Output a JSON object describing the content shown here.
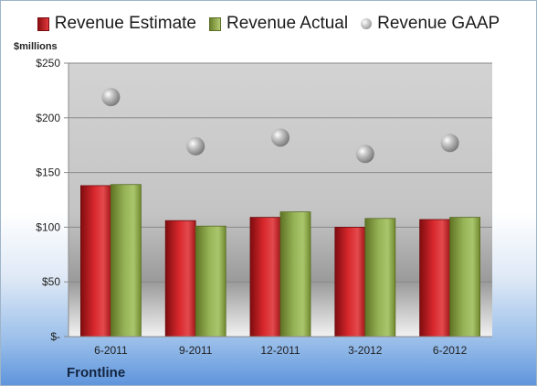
{
  "chart_data": {
    "type": "bar",
    "unit_label": "$millions",
    "categories": [
      "6-2011",
      "9-2011",
      "12-2011",
      "3-2012",
      "6-2012"
    ],
    "series": [
      {
        "name": "Revenue Estimate",
        "kind": "bar",
        "color": "#c8262a",
        "values": [
          138,
          106,
          109,
          100,
          107
        ]
      },
      {
        "name": "Revenue Actual",
        "kind": "bar",
        "color": "#8aa548",
        "values": [
          139,
          101,
          114,
          108,
          109
        ]
      },
      {
        "name": "Revenue GAAP",
        "kind": "marker",
        "color": "#a8a8a8",
        "values": [
          219,
          174,
          182,
          167,
          177
        ]
      }
    ],
    "ylim": [
      0,
      250
    ],
    "yticks": [
      0,
      50,
      100,
      150,
      200,
      250
    ],
    "ytick_labels": [
      "$-",
      "$50",
      "$100",
      "$150",
      "$200",
      "$250"
    ],
    "grid": true,
    "legend_position": "top"
  },
  "footer": {
    "company": "Frontline"
  }
}
